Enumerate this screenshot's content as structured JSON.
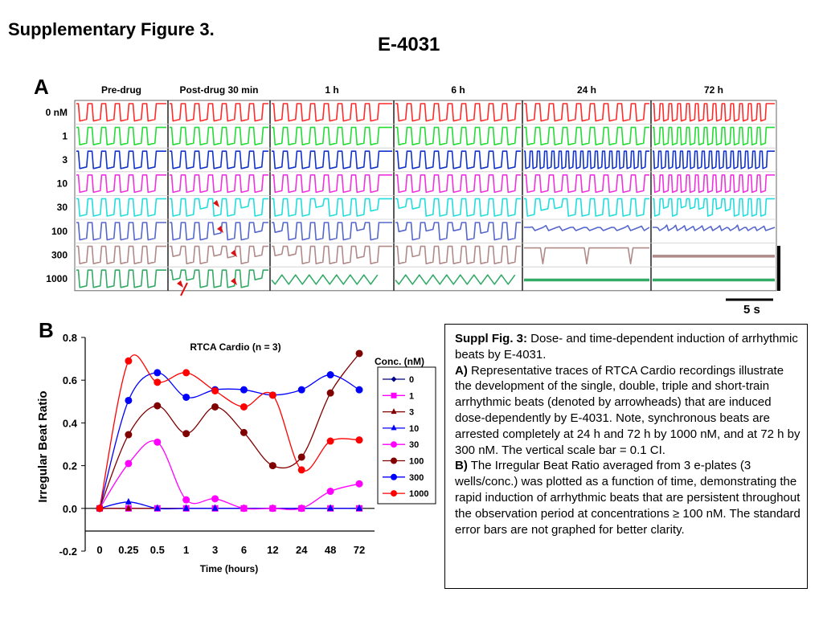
{
  "header": {
    "supp_title": "Supplementary Figure 3.",
    "main_title": "E-4031"
  },
  "panel_a": {
    "letter": "A",
    "columns": [
      "Pre-drug",
      "Post-drug 30 min",
      "1 h",
      "6 h",
      "24 h",
      "72 h"
    ],
    "rows": [
      "0 nM",
      "1",
      "3",
      "10",
      "30",
      "100",
      "300",
      "1000"
    ],
    "row_colors": [
      "#ff2a2a",
      "#22dd33",
      "#1133cc",
      "#ee33dd",
      "#22dddd",
      "#5566cc",
      "#b08a88",
      "#33aa66"
    ],
    "scale_label": "5 s",
    "arrowhead_color": "#dd1111"
  },
  "panel_b": {
    "letter": "B"
  },
  "chart_data": {
    "type": "line",
    "title": "RTCA Cardio  (n = 3)",
    "xlabel": "Time (hours)",
    "ylabel": "Irregular Beat Ratio",
    "categories": [
      "0",
      "0.25",
      "0.5",
      "1",
      "3",
      "6",
      "12",
      "24",
      "48",
      "72"
    ],
    "yticks": [
      "0.8",
      "0.6",
      "0.4",
      "0.2",
      "0.0",
      "-0.2"
    ],
    "ylim": [
      -0.2,
      0.8
    ],
    "legend_title": "Conc. (nM)",
    "legend_position": "right",
    "series": [
      {
        "name": "0",
        "color": "#000080",
        "marker": "diamond",
        "values": [
          0,
          0,
          0,
          0,
          0,
          0,
          0,
          0,
          0,
          0
        ]
      },
      {
        "name": "1",
        "color": "#ff00ff",
        "marker": "square",
        "values": [
          0,
          0,
          0,
          0,
          0,
          0,
          0,
          0,
          0,
          0
        ]
      },
      {
        "name": "3",
        "color": "#800000",
        "marker": "triangle",
        "values": [
          0,
          0,
          0,
          0,
          0,
          0,
          0,
          0,
          0,
          0
        ]
      },
      {
        "name": "10",
        "color": "#0000ff",
        "marker": "triangle",
        "values": [
          0,
          0.03,
          0,
          0,
          0,
          0,
          0,
          0,
          0,
          0
        ]
      },
      {
        "name": "30",
        "color": "#ff00ff",
        "marker": "circle",
        "values": [
          0,
          0.21,
          0.31,
          0.04,
          0.045,
          0,
          0,
          0,
          0.08,
          0.115
        ]
      },
      {
        "name": "100",
        "color": "#800000",
        "marker": "circle",
        "values": [
          0,
          0.345,
          0.48,
          0.35,
          0.475,
          0.355,
          0.2,
          0.24,
          0.54,
          0.725
        ]
      },
      {
        "name": "300",
        "color": "#0000ff",
        "marker": "circle",
        "values": [
          0,
          0.505,
          0.635,
          0.52,
          0.555,
          0.555,
          0.53,
          0.555,
          0.625,
          0.555
        ]
      },
      {
        "name": "1000",
        "color": "#ff0000",
        "marker": "circle",
        "values": [
          0,
          0.69,
          0.59,
          0.635,
          0.55,
          0.475,
          0.53,
          0.18,
          0.315,
          0.32
        ]
      }
    ]
  },
  "caption": {
    "p1_head": "Suppl Fig. 3:",
    "p1_body": " Dose- and time-dependent induction of arrhythmic beats by E-4031.",
    "p2_head": "A)",
    "p2_body": " Representative traces of RTCA Cardio recordings illustrate the development of the single, double, triple and short-train arrhythmic beats (denoted by arrowheads) that are induced dose-dependently by E-4031. Note, synchronous beats are arrested completely at 24 h and 72 h by 1000 nM, and at 72 h by 300 nM. The vertical scale bar = 0.1 CI.",
    "p3_head": "B)",
    "p3_body": " The Irregular Beat Ratio averaged from 3 e-plates (3 wells/conc.) was plotted as a function of time, demonstrating the rapid  induction of arrhythmic beats that are persistent throughout the observation period at concentrations ≥ 100 nM. The standard error bars are not graphed for better clarity."
  }
}
